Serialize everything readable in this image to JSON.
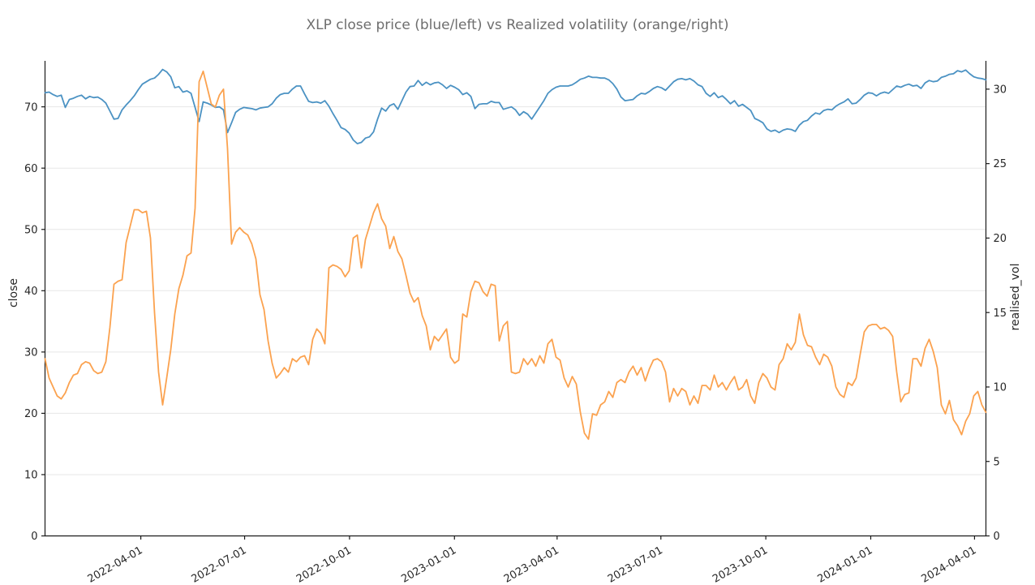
{
  "title": "XLP close price (blue/left) vs Realized volatility (orange/right)",
  "chart_data": {
    "type": "line",
    "title": "XLP close price (blue/left) vs Realized volatility (orange/right)",
    "x_axis": {
      "start_date": "2022-01-07",
      "end_date": "2024-04-11",
      "tick_dates": [
        "2022-04-01",
        "2022-07-01",
        "2022-10-01",
        "2023-01-01",
        "2023-04-01",
        "2023-07-01",
        "2023-10-01",
        "2024-01-01",
        "2024-04-01"
      ],
      "tick_rotation_deg": 30
    },
    "left_axis": {
      "label": "close",
      "ticks": [
        0,
        10,
        20,
        30,
        40,
        50,
        60,
        70
      ],
      "range": [
        0,
        77.5
      ]
    },
    "right_axis": {
      "label": "realised_vol",
      "ticks": [
        0,
        5,
        10,
        15,
        20,
        25,
        30
      ],
      "range": [
        0,
        31.9
      ]
    },
    "grid": {
      "horizontal": true,
      "at": "left-axis-ticks",
      "color": "#e7e7e7"
    },
    "legend": "none",
    "sample_interval_days": 3.556,
    "series": [
      {
        "name": "close",
        "axis": "left",
        "color": "#4b92c3",
        "values": [
          72.3,
          72.4,
          72.0,
          71.7,
          71.9,
          69.9,
          71.2,
          71.4,
          71.7,
          71.9,
          71.3,
          71.7,
          71.5,
          71.6,
          71.2,
          70.6,
          69.3,
          68.0,
          68.1,
          69.5,
          70.3,
          71.0,
          71.8,
          72.8,
          73.7,
          74.1,
          74.5,
          74.7,
          75.3,
          76.1,
          75.7,
          74.9,
          73.1,
          73.3,
          72.4,
          72.6,
          72.2,
          69.9,
          67.6,
          70.8,
          70.6,
          70.3,
          69.9,
          70.0,
          69.5,
          65.8,
          67.4,
          69.1,
          69.6,
          69.9,
          69.8,
          69.7,
          69.5,
          69.8,
          69.9,
          70.0,
          70.5,
          71.4,
          72.0,
          72.2,
          72.2,
          72.9,
          73.4,
          73.4,
          72.1,
          70.9,
          70.7,
          70.8,
          70.6,
          71.0,
          70.1,
          68.9,
          67.8,
          66.6,
          66.3,
          65.7,
          64.6,
          64.0,
          64.2,
          64.9,
          65.1,
          65.9,
          68.0,
          69.8,
          69.3,
          70.2,
          70.5,
          69.6,
          71.0,
          72.4,
          73.3,
          73.4,
          74.3,
          73.5,
          74.0,
          73.6,
          73.9,
          74.0,
          73.6,
          73.0,
          73.5,
          73.2,
          72.8,
          72.0,
          72.3,
          71.7,
          69.7,
          70.4,
          70.5,
          70.5,
          70.9,
          70.7,
          70.7,
          69.6,
          69.8,
          70.0,
          69.5,
          68.6,
          69.2,
          68.8,
          68.0,
          69.0,
          70.0,
          71.0,
          72.2,
          72.8,
          73.2,
          73.4,
          73.4,
          73.4,
          73.6,
          74.0,
          74.5,
          74.7,
          75.0,
          74.8,
          74.8,
          74.7,
          74.7,
          74.4,
          73.8,
          72.9,
          71.6,
          71.0,
          71.1,
          71.2,
          71.8,
          72.2,
          72.1,
          72.5,
          73.0,
          73.3,
          73.1,
          72.7,
          73.4,
          74.1,
          74.5,
          74.6,
          74.4,
          74.6,
          74.2,
          73.6,
          73.3,
          72.2,
          71.7,
          72.3,
          71.5,
          71.8,
          71.2,
          70.5,
          71.0,
          70.1,
          70.4,
          69.9,
          69.4,
          68.1,
          67.8,
          67.4,
          66.4,
          66.0,
          66.2,
          65.8,
          66.2,
          66.4,
          66.3,
          66.0,
          67.0,
          67.6,
          67.8,
          68.5,
          69.0,
          68.8,
          69.4,
          69.6,
          69.5,
          70.1,
          70.5,
          70.8,
          71.3,
          70.5,
          70.6,
          71.2,
          71.9,
          72.3,
          72.2,
          71.8,
          72.2,
          72.4,
          72.2,
          72.8,
          73.4,
          73.2,
          73.5,
          73.7,
          73.4,
          73.5,
          73.0,
          73.9,
          74.3,
          74.1,
          74.2,
          74.8,
          75.0,
          75.3,
          75.4,
          75.9,
          75.7,
          76.0,
          75.4,
          74.9,
          74.7,
          74.6,
          74.4
        ]
      },
      {
        "name": "realised_vol",
        "axis": "right",
        "color": "#fba24f",
        "values": [
          11.9,
          10.6,
          10.0,
          9.4,
          9.2,
          9.6,
          10.3,
          10.8,
          10.9,
          11.5,
          11.7,
          11.6,
          11.1,
          10.9,
          11.0,
          11.7,
          14.0,
          16.9,
          17.1,
          17.2,
          19.7,
          20.8,
          21.9,
          21.9,
          21.7,
          21.8,
          20.0,
          15.0,
          11.0,
          8.8,
          10.6,
          12.5,
          14.9,
          16.6,
          17.5,
          18.8,
          19.0,
          22.0,
          30.5,
          31.2,
          30.1,
          29.0,
          28.8,
          29.6,
          30.0,
          26.0,
          19.6,
          20.4,
          20.7,
          20.4,
          20.2,
          19.6,
          18.6,
          16.2,
          15.2,
          13.1,
          11.6,
          10.6,
          10.9,
          11.3,
          11.0,
          11.9,
          11.7,
          12.0,
          12.1,
          11.5,
          13.2,
          13.9,
          13.6,
          12.9,
          18.0,
          18.2,
          18.1,
          17.9,
          17.4,
          17.8,
          20.0,
          20.2,
          18.0,
          19.9,
          20.8,
          21.7,
          22.3,
          21.3,
          20.8,
          19.3,
          20.1,
          19.1,
          18.6,
          17.5,
          16.3,
          15.7,
          16.0,
          14.8,
          14.1,
          12.5,
          13.4,
          13.1,
          13.5,
          13.9,
          12.0,
          11.6,
          11.8,
          14.9,
          14.7,
          16.4,
          17.1,
          17.0,
          16.4,
          16.1,
          16.9,
          16.8,
          13.1,
          14.1,
          14.4,
          11.0,
          10.9,
          11.0,
          11.9,
          11.5,
          11.9,
          11.4,
          12.1,
          11.6,
          12.9,
          13.2,
          12.0,
          11.8,
          10.6,
          10.0,
          10.7,
          10.2,
          8.3,
          6.9,
          6.5,
          8.2,
          8.1,
          8.8,
          9.0,
          9.7,
          9.3,
          10.3,
          10.5,
          10.3,
          11.0,
          11.4,
          10.8,
          11.3,
          10.4,
          11.2,
          11.8,
          11.9,
          11.7,
          11.0,
          9.0,
          9.9,
          9.4,
          9.9,
          9.7,
          8.8,
          9.4,
          8.9,
          10.1,
          10.1,
          9.8,
          10.8,
          10.0,
          10.3,
          9.8,
          10.3,
          10.7,
          9.8,
          10.0,
          10.5,
          9.4,
          8.9,
          10.3,
          10.9,
          10.6,
          10.0,
          9.8,
          11.5,
          11.9,
          12.9,
          12.5,
          13.0,
          14.9,
          13.5,
          12.8,
          12.7,
          12.0,
          11.5,
          12.2,
          12.0,
          11.4,
          10.0,
          9.5,
          9.3,
          10.3,
          10.1,
          10.6,
          12.2,
          13.7,
          14.1,
          14.2,
          14.2,
          13.9,
          14.0,
          13.8,
          13.4,
          11.0,
          9.0,
          9.5,
          9.6,
          11.9,
          11.9,
          11.4,
          12.6,
          13.2,
          12.4,
          11.3,
          8.8,
          8.2,
          9.1,
          7.8,
          7.4,
          6.8,
          7.7,
          8.2,
          9.4,
          9.7,
          8.8,
          8.3
        ]
      }
    ]
  },
  "style": {
    "spine_color": "#1a1a1a",
    "tick_label_color": "#262626",
    "title_color": "#6e6e6e",
    "grid_color": "#e7e7e7",
    "background": "#ffffff"
  }
}
